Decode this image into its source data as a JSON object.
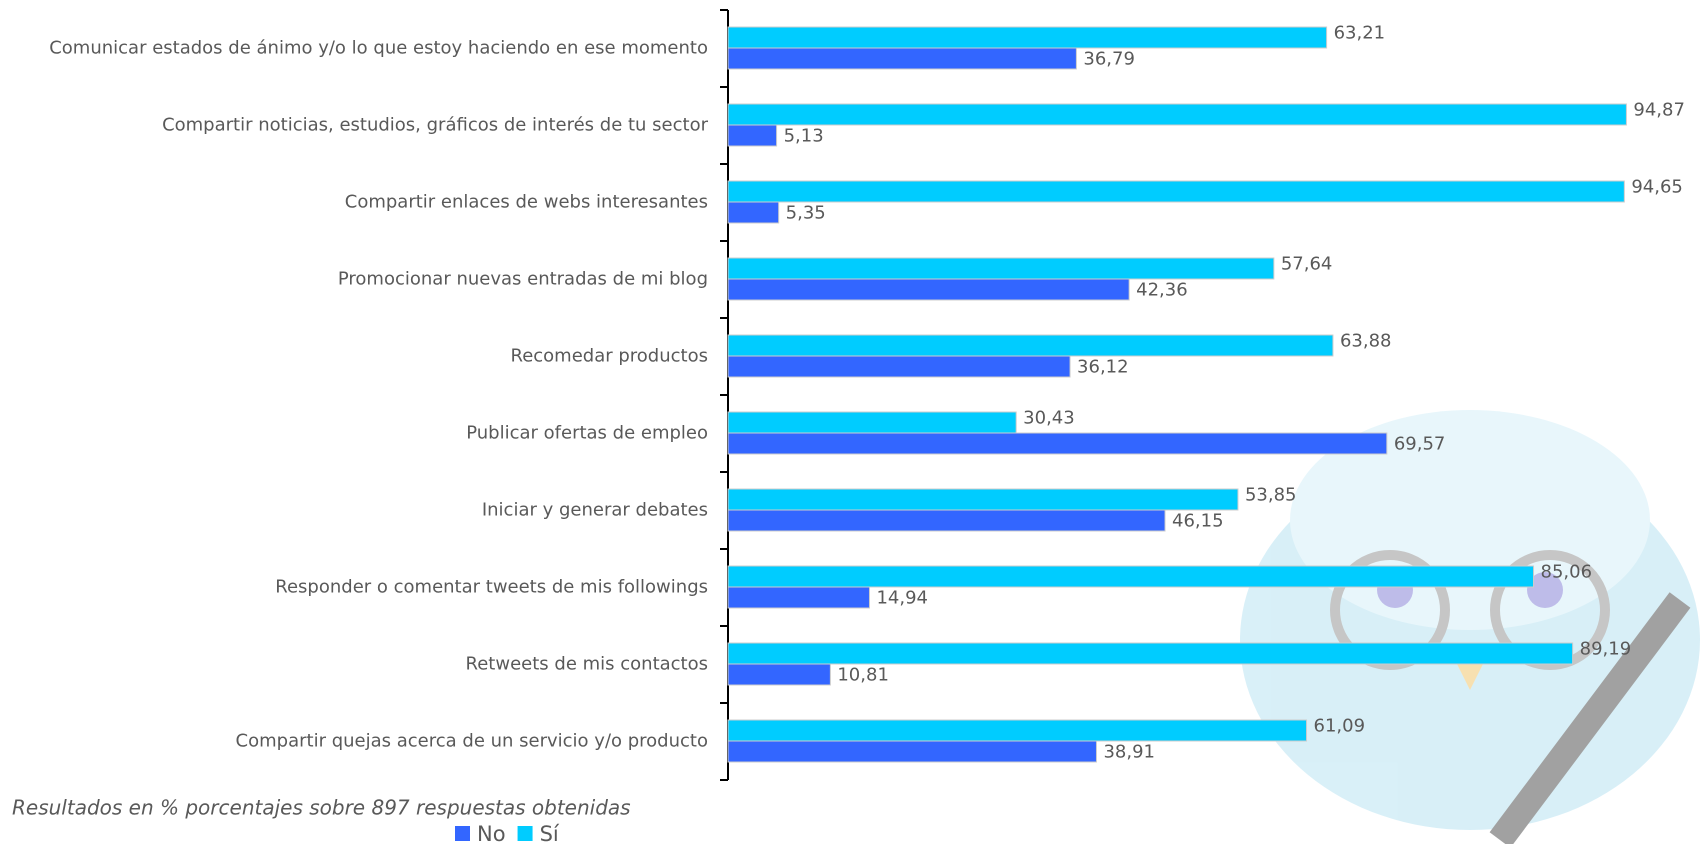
{
  "chart_data": {
    "type": "hbar",
    "categories": [
      "Comunicar estados de ánimo y/o lo que estoy haciendo en ese momento",
      "Compartir noticias, estudios, gráficos de interés de tu sector",
      "Compartir enlaces de webs interesantes",
      "Promocionar nuevas entradas de mi blog",
      "Recomedar productos",
      "Publicar ofertas de empleo",
      "Iniciar y generar debates",
      "Responder o comentar tweets de mis followings",
      "Retweets de mis contactos",
      "Compartir quejas acerca de un servicio y/o producto"
    ],
    "series": [
      {
        "name": "No",
        "color": "#3366ff",
        "values": [
          36.79,
          5.13,
          5.35,
          42.36,
          36.12,
          69.57,
          46.15,
          14.94,
          10.81,
          38.91
        ],
        "value_labels": [
          "36,79",
          "5,13",
          "5,35",
          "42,36",
          "36,12",
          "69,57",
          "46,15",
          "14,94",
          "10,81",
          "38,91"
        ]
      },
      {
        "name": "Sí",
        "color": "#00ccff",
        "values": [
          63.21,
          94.87,
          94.65,
          57.64,
          63.88,
          30.43,
          53.85,
          85.06,
          89.19,
          61.09
        ],
        "value_labels": [
          "63,21",
          "94,87",
          "94,65",
          "57,64",
          "63,88",
          "30,43",
          "53,85",
          "85,06",
          "89,19",
          "61,09"
        ]
      }
    ],
    "xlim": [
      0,
      100
    ],
    "legend": "bottom",
    "footnote": "Resultados en % porcentajes sobre 897 respuestas obtenidas"
  }
}
